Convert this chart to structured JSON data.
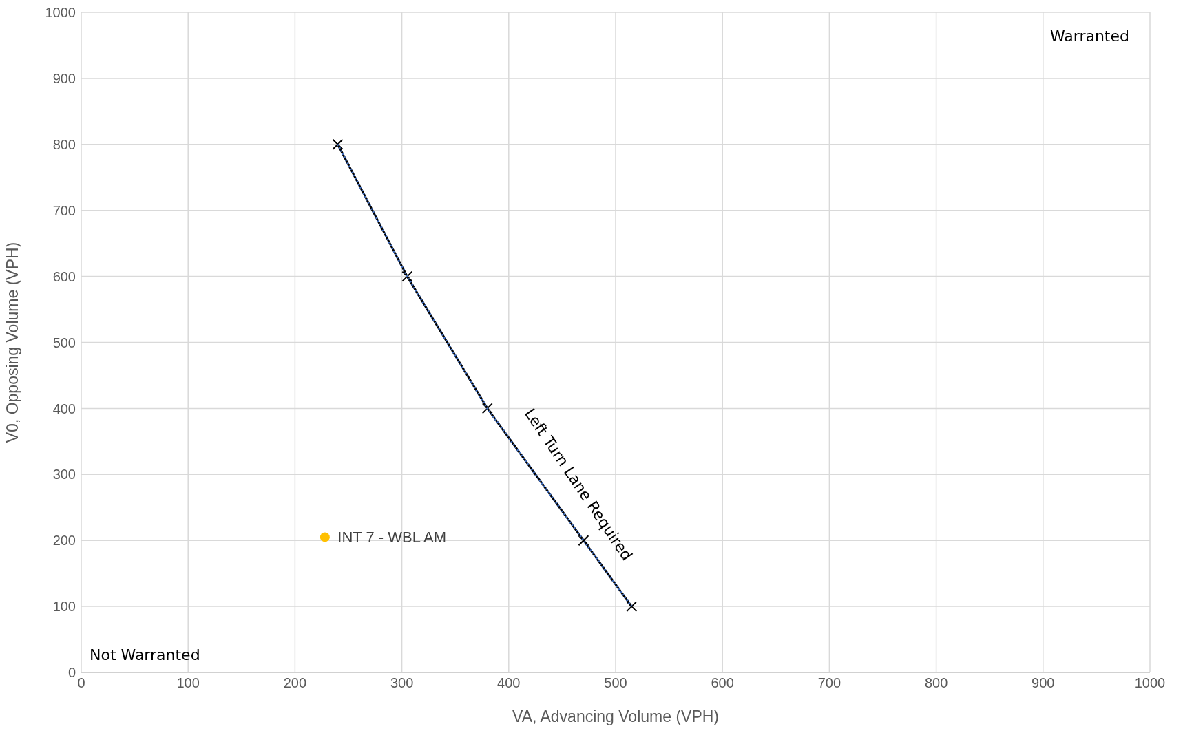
{
  "chart_data": {
    "type": "line",
    "xlabel": "VA, Advancing Volume (VPH)",
    "ylabel": "V0, Opposing Volume (VPH)",
    "xlim": [
      0,
      1000
    ],
    "xticks": [
      0,
      100,
      200,
      300,
      400,
      500,
      600,
      700,
      800,
      900,
      1000
    ],
    "ylim": [
      0,
      1000
    ],
    "yticks": [
      0,
      100,
      200,
      300,
      400,
      500,
      600,
      700,
      800,
      900,
      1000
    ],
    "grid": true,
    "legend": false,
    "series": [
      {
        "color": "#000000",
        "x": [
          240,
          305,
          380,
          470,
          515
        ],
        "values": [
          800,
          600,
          400,
          200,
          100
        ],
        "marker": "cross",
        "line_style": "solid"
      },
      {
        "color": "#4472c4",
        "x": [
          240,
          305,
          380,
          470,
          515
        ],
        "values": [
          800,
          600,
          400,
          200,
          100
        ],
        "marker": "none",
        "line_style": "dotted"
      },
      {
        "type": "scatter",
        "name": "INT 7 - WBL AM",
        "color": "#ffc000",
        "x": [
          228
        ],
        "values": [
          205
        ],
        "marker": "circle"
      }
    ],
    "annotations": [
      "Warranted",
      "Not Warranted",
      "Left Turn Lane Required"
    ]
  }
}
